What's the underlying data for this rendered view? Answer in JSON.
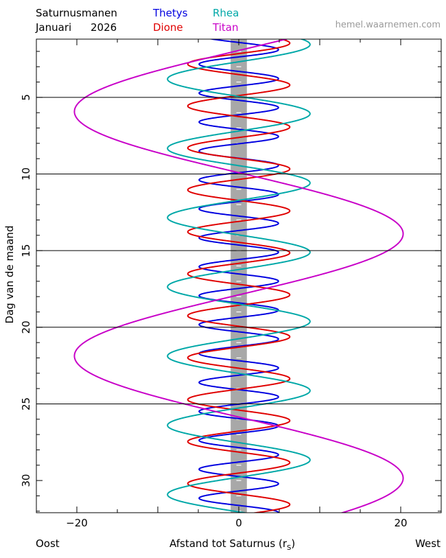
{
  "header": {
    "title": "Saturnusmanen",
    "month": "Januari",
    "year": "2026",
    "site": "hemel.waarnemen.com"
  },
  "legend": [
    {
      "name": "Thetys",
      "color": "#0000e0"
    },
    {
      "name": "Dione",
      "color": "#e00000"
    },
    {
      "name": "Rhea",
      "color": "#00a8a8"
    },
    {
      "name": "Titan",
      "color": "#c800c8"
    }
  ],
  "footer": {
    "left": "Oost",
    "axis_label": "Afstand tot Saturnus (r",
    "axis_sub": "S",
    "axis_close": ")",
    "right": "West"
  },
  "chart_data": {
    "type": "line",
    "ylabel": "Dag van de maand",
    "xlim": [
      -25,
      25
    ],
    "ylim": [
      1.2,
      32.1
    ],
    "y_reversed": true,
    "x_ticks": [
      -20,
      0,
      20
    ],
    "y_ticks": [
      5,
      10,
      15,
      20,
      25,
      30
    ],
    "horizontal_lines_at_days": [
      5,
      10,
      15,
      20,
      25
    ],
    "saturn_band_halfwidth": 1,
    "saturn_band_color": "#a8a8a8",
    "series": [
      {
        "name": "Thetys",
        "color": "#0000e0",
        "amplitude": 4.9,
        "period_days": 1.888,
        "peak_day": 1.89
      },
      {
        "name": "Dione",
        "color": "#e00000",
        "amplitude": 6.3,
        "period_days": 2.737,
        "peak_day": 1.46
      },
      {
        "name": "Rhea",
        "color": "#00a8a8",
        "amplitude": 8.8,
        "period_days": 4.518,
        "peak_day": 1.55
      },
      {
        "name": "Titan",
        "color": "#c800c8",
        "amplitude": 20.3,
        "period_days": 15.945,
        "peak_day": 13.9
      }
    ]
  }
}
